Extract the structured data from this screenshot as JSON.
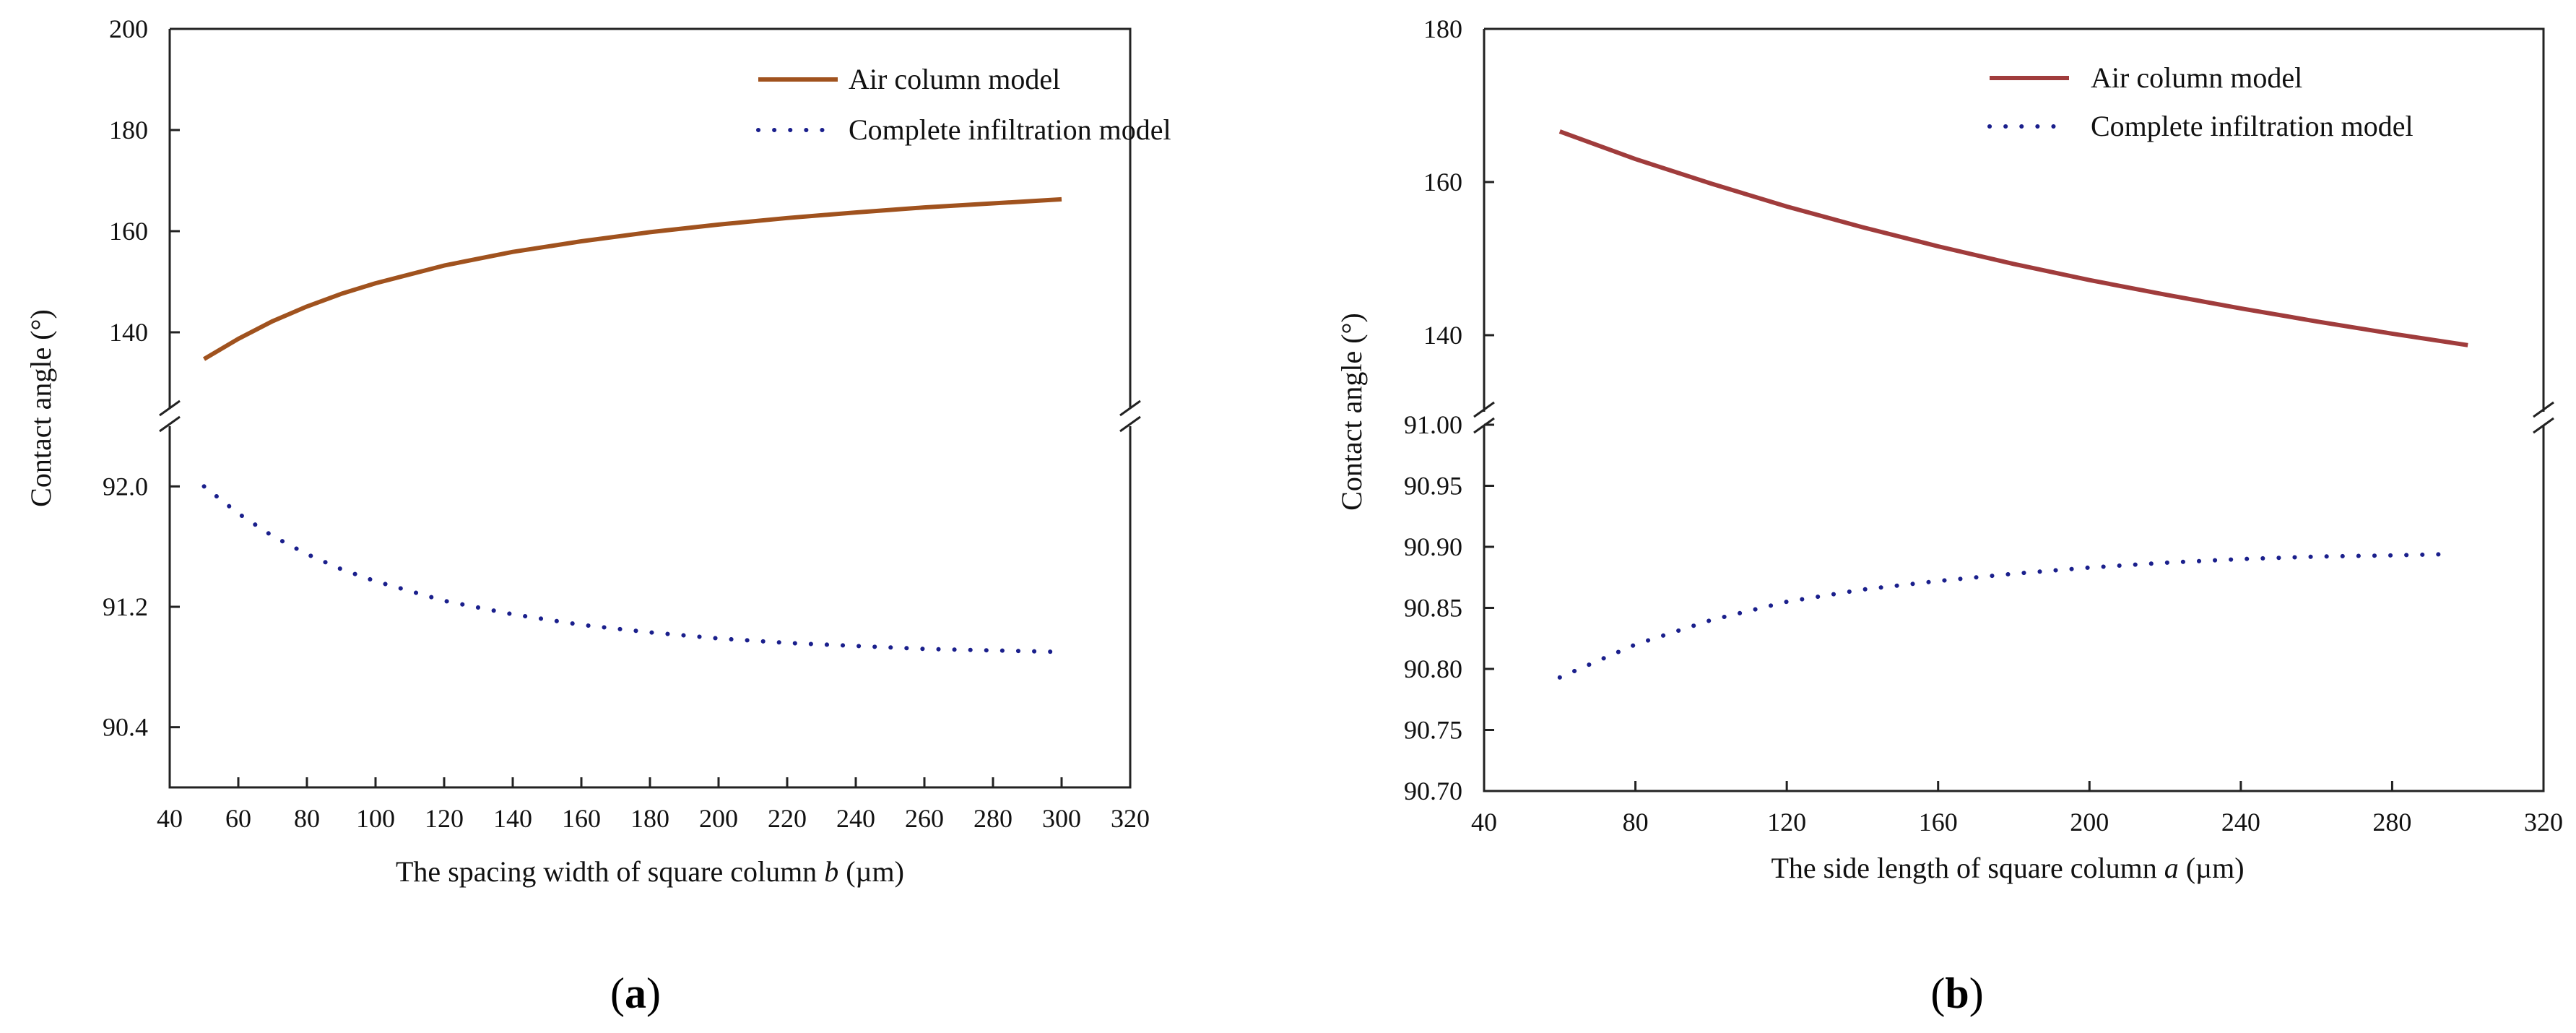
{
  "chart_data": [
    {
      "id": "a",
      "type": "line",
      "panel_label": "a",
      "xlabel": "The spacing width of square column ",
      "xlabel_var": "b",
      "xlabel_unit": " (µm)",
      "ylabel": "Contact angle (°)",
      "xlim": [
        40,
        320
      ],
      "xticks": [
        40,
        60,
        80,
        100,
        120,
        140,
        160,
        180,
        200,
        220,
        240,
        260,
        280,
        300,
        320
      ],
      "ylim_upper": [
        125,
        200
      ],
      "yticks_upper": [
        140,
        160,
        180,
        200
      ],
      "ylim_lower": [
        90.0,
        92.4
      ],
      "yticks_lower": [
        90.4,
        91.2,
        92.0
      ],
      "ytick_labels_lower": [
        "90.4",
        "91.2",
        "92.0"
      ],
      "legend_position": "top-right",
      "series": [
        {
          "name": "Air column model",
          "style": "solid",
          "color": "#a0521e",
          "axis": "upper",
          "x": [
            50,
            60,
            70,
            80,
            90,
            100,
            120,
            140,
            160,
            180,
            200,
            220,
            240,
            260,
            280,
            300
          ],
          "y": [
            134.7,
            138.7,
            142.2,
            145.1,
            147.6,
            149.7,
            153.2,
            155.9,
            158.0,
            159.8,
            161.3,
            162.6,
            163.7,
            164.7,
            165.5,
            166.3
          ]
        },
        {
          "name": "Complete infiltration model",
          "style": "dotted",
          "color": "#1a1f8c",
          "axis": "lower",
          "x": [
            50,
            60,
            70,
            80,
            90,
            100,
            120,
            140,
            160,
            180,
            200,
            220,
            240,
            260,
            280,
            300
          ],
          "y": [
            92.0,
            91.82,
            91.67,
            91.55,
            91.45,
            91.37,
            91.24,
            91.15,
            91.08,
            91.03,
            90.99,
            90.96,
            90.94,
            90.92,
            90.91,
            90.9
          ]
        }
      ]
    },
    {
      "id": "b",
      "type": "line",
      "panel_label": "b",
      "xlabel": "The side length of square column ",
      "xlabel_var": "a",
      "xlabel_unit": "  (µm)",
      "ylabel": "Contact angle (°)",
      "xlim": [
        40,
        320
      ],
      "xticks": [
        40,
        80,
        120,
        160,
        200,
        240,
        280,
        320
      ],
      "ylim_upper": [
        130,
        180
      ],
      "yticks_upper": [
        140,
        160,
        180
      ],
      "ylim_lower": [
        90.7,
        91.0
      ],
      "yticks_lower": [
        90.7,
        90.75,
        90.8,
        90.85,
        90.9,
        90.95,
        91.0
      ],
      "ytick_labels_lower": [
        "90.70",
        "90.75",
        "90.80",
        "90.85",
        "90.90",
        "90.95",
        "91.00"
      ],
      "legend_position": "top-right",
      "series": [
        {
          "name": "Air column model",
          "style": "solid",
          "color": "#a03c3c",
          "axis": "upper",
          "x": [
            60,
            80,
            100,
            120,
            140,
            160,
            180,
            200,
            220,
            240,
            260,
            280,
            300
          ],
          "y": [
            166.6,
            163.0,
            159.8,
            156.8,
            154.1,
            151.6,
            149.3,
            147.2,
            145.3,
            143.5,
            141.8,
            140.2,
            138.7
          ]
        },
        {
          "name": "Complete infiltration model",
          "style": "dotted",
          "color": "#1a1f8c",
          "axis": "lower",
          "x": [
            60,
            80,
            100,
            120,
            140,
            160,
            180,
            200,
            220,
            240,
            260,
            280,
            295
          ],
          "y": [
            90.793,
            90.82,
            90.84,
            90.855,
            90.865,
            90.872,
            90.878,
            90.883,
            90.887,
            90.89,
            90.892,
            90.893,
            90.894
          ]
        }
      ]
    }
  ]
}
